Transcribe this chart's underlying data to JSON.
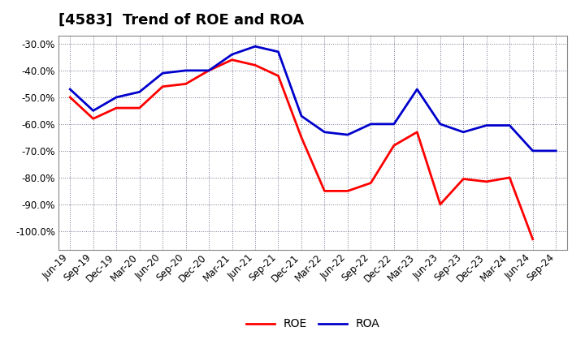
{
  "title": "[4583]  Trend of ROE and ROA",
  "labels": [
    "Jun-19",
    "Sep-19",
    "Dec-19",
    "Mar-20",
    "Jun-20",
    "Sep-20",
    "Dec-20",
    "Mar-21",
    "Jun-21",
    "Sep-21",
    "Dec-21",
    "Mar-22",
    "Jun-22",
    "Sep-22",
    "Dec-22",
    "Mar-23",
    "Jun-23",
    "Sep-23",
    "Dec-23",
    "Mar-24",
    "Jun-24",
    "Sep-24"
  ],
  "ROE": [
    -50.0,
    -58.0,
    -54.0,
    -54.0,
    -46.0,
    -45.0,
    -40.0,
    -36.0,
    -38.0,
    -42.0,
    -65.0,
    -85.0,
    -85.0,
    -82.0,
    -68.0,
    -63.0,
    -90.0,
    -80.5,
    -81.5,
    -80.0,
    -103.0,
    null
  ],
  "ROA": [
    -47.0,
    -55.0,
    -50.0,
    -48.0,
    -41.0,
    -40.0,
    -40.0,
    -34.0,
    -31.0,
    -33.0,
    -57.0,
    -63.0,
    -64.0,
    -60.0,
    -60.0,
    -47.0,
    -60.0,
    -63.0,
    -60.5,
    -60.5,
    -70.0,
    -70.0
  ],
  "roe_color": "#FF0000",
  "roa_color": "#0000CC",
  "background_color": "#FFFFFF",
  "plot_bg_color": "#FFFFFF",
  "grid_color": "#555577",
  "ylim": [
    -107,
    -27
  ],
  "yticks": [
    -30,
    -40,
    -50,
    -60,
    -70,
    -80,
    -90,
    -100
  ],
  "line_width": 2.0,
  "title_fontsize": 13,
  "legend_fontsize": 10,
  "tick_fontsize": 8.5
}
